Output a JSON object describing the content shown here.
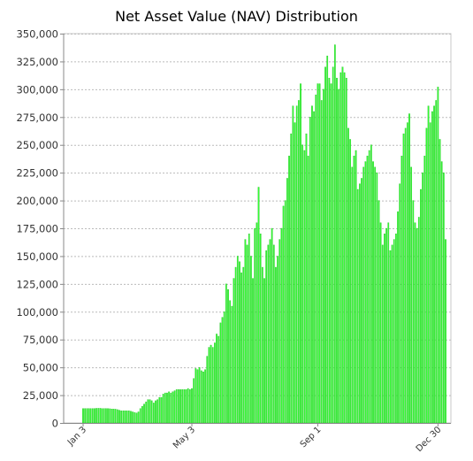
{
  "chart_data": {
    "type": "bar",
    "title": "Net Asset Value (NAV) Distribution",
    "xlabel": "",
    "ylabel": "",
    "bar_color": "#33ff33",
    "bar_edge_color": "#1fbf1f",
    "grid": true,
    "ylim": [
      0,
      350000
    ],
    "yticks": [
      "0",
      "25,000",
      "50,000",
      "75,000",
      "100,000",
      "125,000",
      "150,000",
      "175,000",
      "200,000",
      "225,000",
      "250,000",
      "275,000",
      "300,000",
      "325,000",
      "350,000"
    ],
    "x_tick_labels": [
      {
        "label": "Jan 3",
        "index": 0
      },
      {
        "label": "May 3",
        "index": 57
      },
      {
        "label": "Sep 1",
        "index": 123
      },
      {
        "label": "Dec 30",
        "index": 186
      }
    ],
    "values": [
      13000,
      13000,
      13000,
      13000,
      13000,
      13000,
      13000,
      13200,
      13200,
      13200,
      13000,
      13000,
      13000,
      13000,
      12800,
      12600,
      12500,
      12400,
      12000,
      11500,
      11000,
      11000,
      11000,
      11000,
      11000,
      10500,
      10000,
      9500,
      9000,
      10000,
      13000,
      15000,
      17000,
      19000,
      21000,
      21000,
      20000,
      18000,
      20000,
      21000,
      23000,
      23000,
      26000,
      27000,
      27000,
      28000,
      27000,
      28000,
      29000,
      30000,
      30000,
      30000,
      30000,
      30000,
      30000,
      31000,
      30000,
      31000,
      40000,
      49000,
      48000,
      50000,
      47000,
      46000,
      48000,
      60000,
      68000,
      70000,
      68000,
      72000,
      80000,
      78000,
      90000,
      95000,
      100000,
      125000,
      120000,
      110000,
      105000,
      130000,
      140000,
      150000,
      145000,
      135000,
      140000,
      165000,
      160000,
      170000,
      150000,
      130000,
      175000,
      180000,
      212000,
      170000,
      140000,
      130000,
      155000,
      160000,
      165000,
      175000,
      160000,
      140000,
      150000,
      165000,
      175000,
      195000,
      200000,
      220000,
      240000,
      260000,
      285000,
      270000,
      285000,
      290000,
      305000,
      250000,
      245000,
      260000,
      240000,
      275000,
      285000,
      280000,
      295000,
      305000,
      305000,
      290000,
      300000,
      320000,
      330000,
      310000,
      305000,
      320000,
      340000,
      310000,
      300000,
      315000,
      320000,
      315000,
      310000,
      265000,
      255000,
      230000,
      240000,
      245000,
      210000,
      215000,
      220000,
      230000,
      235000,
      240000,
      245000,
      250000,
      235000,
      230000,
      225000,
      200000,
      180000,
      160000,
      170000,
      175000,
      180000,
      155000,
      160000,
      165000,
      170000,
      190000,
      215000,
      240000,
      260000,
      265000,
      270000,
      278000,
      230000,
      200000,
      180000,
      175000,
      185000,
      210000,
      225000,
      240000,
      265000,
      285000,
      270000,
      280000,
      285000,
      290000,
      302000,
      255000,
      235000,
      225000,
      165000
    ]
  }
}
